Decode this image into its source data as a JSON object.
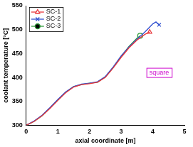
{
  "chart_data": {
    "type": "line",
    "x_label": "axial coordinate [m]",
    "y_label": "coolant temperature [°C]",
    "xlim": [
      0,
      5
    ],
    "xticks": [
      0,
      1,
      2,
      3,
      4,
      5
    ],
    "ylim": [
      300,
      550
    ],
    "yticks": [
      300,
      350,
      400,
      450,
      500,
      550
    ],
    "grid": false,
    "legend": "top-left",
    "annotations": [
      "square"
    ],
    "series": [
      {
        "name": "SC-1",
        "color": "#e8353a",
        "marker": "triangle",
        "x": [
          0,
          0.25,
          0.5,
          0.75,
          1.0,
          1.25,
          1.5,
          1.75,
          2.0,
          2.25,
          2.5,
          2.75,
          3.0,
          3.25,
          3.5,
          3.75,
          3.9
        ],
        "values": [
          300,
          308,
          320,
          335,
          352,
          368,
          380,
          385,
          387,
          390,
          400,
          420,
          442,
          462,
          478,
          490,
          495
        ]
      },
      {
        "name": "SC-2",
        "color": "#3050d0",
        "marker": "x",
        "x": [
          0,
          0.25,
          0.5,
          0.75,
          1.0,
          1.25,
          1.5,
          1.75,
          2.0,
          2.25,
          2.5,
          2.75,
          3.0,
          3.25,
          3.5,
          3.75,
          4.0,
          4.1,
          4.2
        ],
        "values": [
          300,
          309,
          321,
          337,
          354,
          370,
          381,
          386,
          388,
          391,
          402,
          422,
          445,
          464,
          480,
          495,
          512,
          516,
          510
        ]
      },
      {
        "name": "SC-3",
        "color": "#2e9a3a",
        "marker": "circle",
        "x": [
          0,
          0.25,
          0.5,
          0.75,
          1.0,
          1.25,
          1.5,
          1.75,
          2.0,
          2.25,
          2.5,
          2.75,
          3.0,
          3.25,
          3.5,
          3.6
        ],
        "values": [
          300,
          308,
          320,
          336,
          353,
          369,
          381,
          385,
          388,
          390,
          401,
          421,
          444,
          465,
          482,
          487
        ]
      }
    ]
  }
}
